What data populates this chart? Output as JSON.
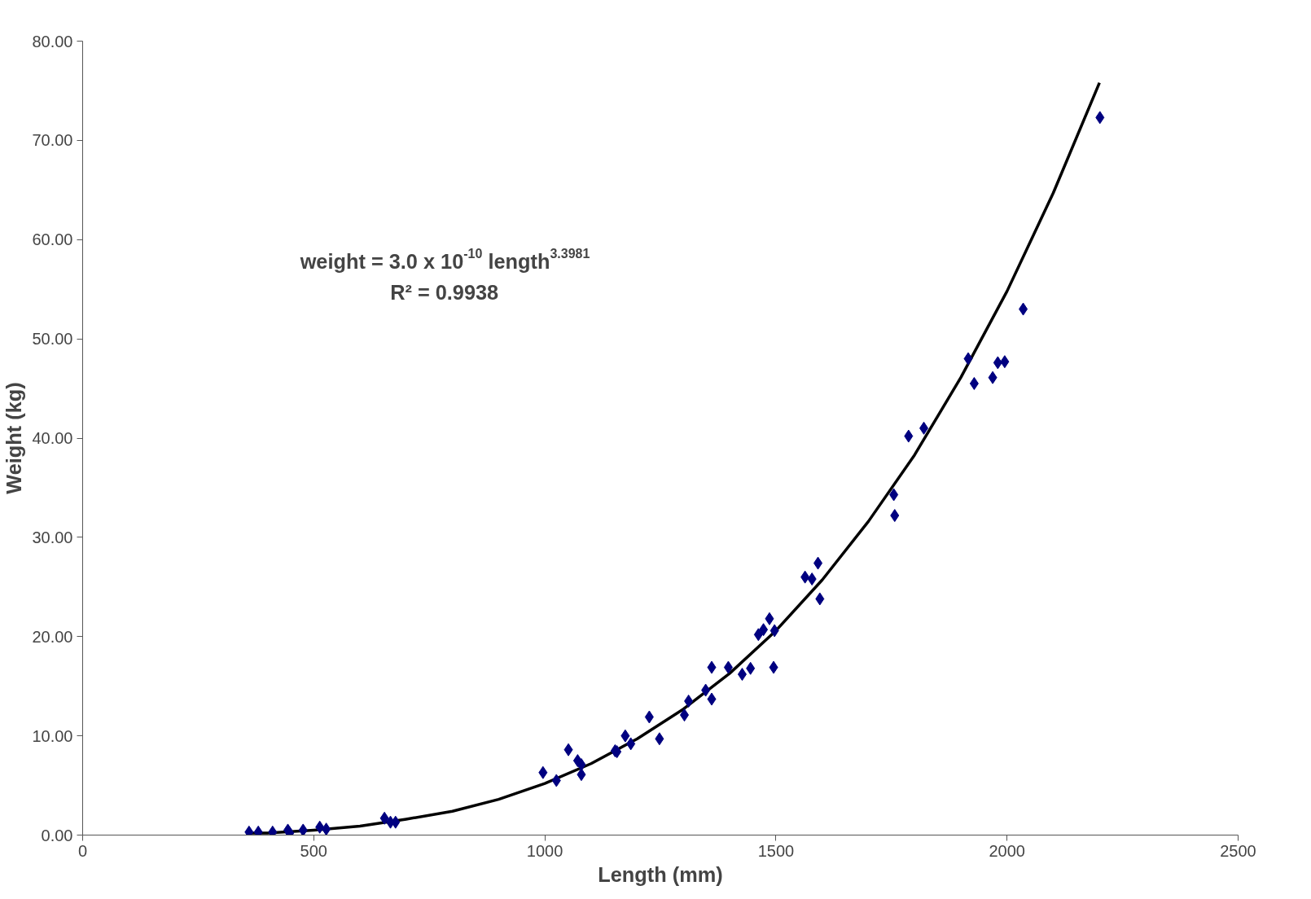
{
  "chart_data": {
    "type": "scatter",
    "xlabel": "Length (mm)",
    "ylabel": "Weight (kg)",
    "xlim": [
      0,
      2500
    ],
    "xticks": [
      0,
      500,
      1000,
      1500,
      2000,
      2500
    ],
    "ylim": [
      0,
      80
    ],
    "yticks": [
      {
        "value": 0,
        "label": "0.00"
      },
      {
        "value": 10,
        "label": "10.00"
      },
      {
        "value": 20,
        "label": "20.00"
      },
      {
        "value": 30,
        "label": "30.00"
      },
      {
        "value": 40,
        "label": "40.00"
      },
      {
        "value": 50,
        "label": "50.00"
      },
      {
        "value": 60,
        "label": "60.00"
      },
      {
        "value": 70,
        "label": "70.00"
      },
      {
        "value": 80,
        "label": "80.00"
      }
    ],
    "grid": false,
    "marker": "diamond",
    "annotations": [
      "weight = 3.0 x 10$^{-10}$ length$^{3.3981}$",
      "R² = 0.9938"
    ],
    "series": [
      {
        "type": "scatter",
        "color": "#000080",
        "x": [
          360,
          380,
          411,
          444,
          448,
          477,
          513,
          527,
          653,
          666,
          677,
          996,
          1025,
          1051,
          1071,
          1079,
          1079,
          1152,
          1156,
          1174,
          1186,
          1226,
          1248,
          1302,
          1311,
          1348,
          1361,
          1361,
          1397,
          1427,
          1445,
          1462,
          1473,
          1486,
          1497,
          1495,
          1563,
          1578,
          1591,
          1595,
          1755,
          1757,
          1787,
          1820,
          1916,
          1929,
          1969,
          1980,
          1995,
          2035,
          2201
        ],
        "values": [
          0.3,
          0.3,
          0.3,
          0.5,
          0.2,
          0.5,
          0.8,
          0.6,
          1.7,
          1.3,
          1.3,
          6.3,
          5.5,
          8.6,
          7.5,
          7.1,
          6.1,
          8.5,
          8.4,
          10.0,
          9.2,
          11.9,
          9.7,
          12.1,
          13.5,
          14.6,
          16.9,
          13.7,
          16.9,
          16.2,
          16.8,
          20.2,
          20.7,
          21.8,
          20.6,
          16.9,
          26.0,
          25.8,
          27.4,
          23.8,
          34.3,
          32.2,
          40.2,
          41.0,
          48.0,
          45.5,
          46.1,
          47.6,
          47.7,
          53.0,
          72.3
        ]
      },
      {
        "type": "line",
        "color": "#000000",
        "marker": "none",
        "line_style": "solid",
        "x": [
          360,
          400,
          500,
          600,
          700,
          800,
          900,
          1000,
          1100,
          1200,
          1300,
          1400,
          1500,
          1600,
          1700,
          1800,
          1900,
          2000,
          2100,
          2200
        ],
        "values": [
          0.2,
          0.2,
          0.5,
          0.9,
          1.6,
          2.4,
          3.6,
          5.2,
          7.2,
          9.7,
          12.7,
          16.3,
          20.6,
          25.7,
          31.6,
          38.3,
          46.1,
          54.8,
          64.7,
          75.8
        ]
      }
    ]
  }
}
